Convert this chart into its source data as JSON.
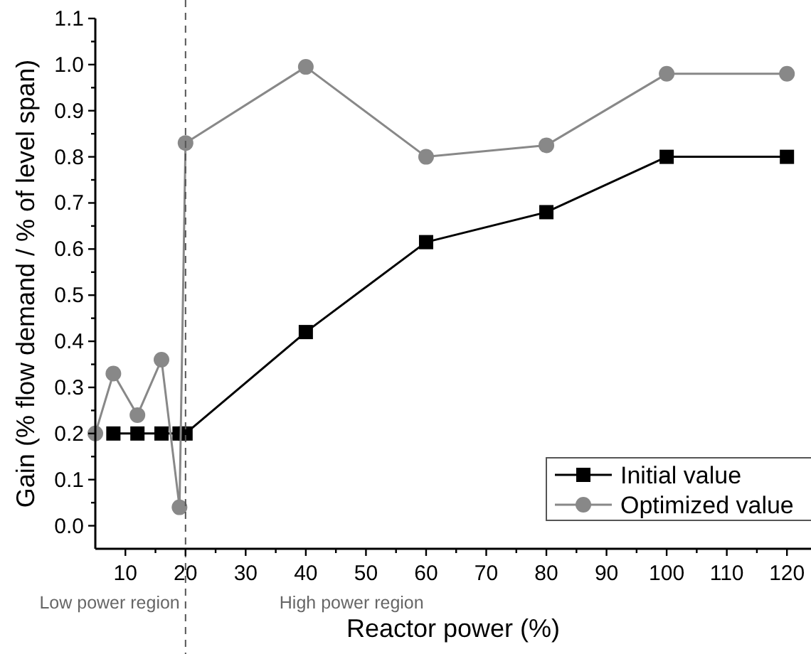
{
  "chart_data": {
    "type": "line",
    "xlabel": "Reactor power (%)",
    "ylabel": "Gain (% flow demand / % of level span)",
    "xlim": [
      5,
      124
    ],
    "ylim": [
      -0.05,
      1.1
    ],
    "xticks": [
      10,
      {
        "value": 15,
        "label": null
      },
      20,
      {
        "value": 25,
        "label": null
      },
      30,
      {
        "value": 35,
        "label": null
      },
      40,
      {
        "value": 45,
        "label": null
      },
      50,
      {
        "value": 55,
        "label": null
      },
      60,
      {
        "value": 65,
        "label": null
      },
      70,
      {
        "value": 75,
        "label": null
      },
      80,
      {
        "value": 85,
        "label": null
      },
      90,
      {
        "value": 95,
        "label": null
      },
      100,
      {
        "value": 105,
        "label": null
      },
      110,
      {
        "value": 115,
        "label": null
      },
      120
    ],
    "yticks": [
      {
        "value": 0,
        "label": "0.0"
      },
      {
        "value": 0.05,
        "label": null
      },
      0.1,
      {
        "value": 0.15,
        "label": null
      },
      0.2,
      {
        "value": 0.25,
        "label": null
      },
      0.3,
      {
        "value": 0.35,
        "label": null
      },
      0.4,
      {
        "value": 0.45,
        "label": null
      },
      0.5,
      {
        "value": 0.55,
        "label": null
      },
      0.6,
      {
        "value": 0.65,
        "label": null
      },
      0.7,
      {
        "value": 0.75,
        "label": null
      },
      0.8,
      {
        "value": 0.85,
        "label": null
      },
      0.9,
      {
        "value": 0.95,
        "label": null
      },
      {
        "value": 1,
        "label": "1.0"
      },
      {
        "value": 1.05,
        "label": null
      },
      1.1
    ],
    "grid": false,
    "legend": "bottom right",
    "series": [
      {
        "name": "Initial value",
        "color": "#000000",
        "marker": "square",
        "x": [
          8,
          12,
          16,
          19,
          20,
          40,
          60,
          80,
          100,
          120
        ],
        "values": [
          0.2,
          0.2,
          0.2,
          0.2,
          0.2,
          0.42,
          0.615,
          0.68,
          0.8,
          0.8
        ]
      },
      {
        "name": "Optimized value",
        "color": "#888888",
        "marker": "circle",
        "x": [
          5,
          8,
          12,
          16,
          19,
          20,
          40,
          60,
          80,
          100,
          120
        ],
        "values": [
          0.2,
          0.33,
          0.24,
          0.36,
          0.04,
          0.83,
          0.995,
          0.8,
          0.825,
          0.98,
          0.98
        ]
      }
    ],
    "ref_lines": [
      {
        "axis": "x",
        "value": 20,
        "color": "#555555",
        "line_style": "dashed"
      }
    ],
    "annotations": [
      "Low power region",
      "High power region"
    ]
  }
}
